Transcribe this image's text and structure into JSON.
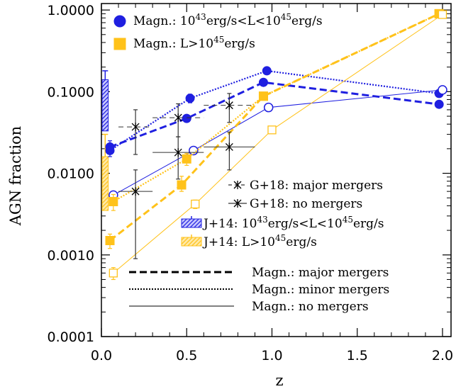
{
  "chart_data": {
    "type": "line",
    "xlabel": "z",
    "ylabel": "AGN fraction",
    "xlim": [
      0.0,
      2.05
    ],
    "ylim": [
      0.0001,
      1.2
    ],
    "yscale": "log",
    "grid": false,
    "legend_placement": "top-left / center-right / bottom-right",
    "x_ticks": [
      {
        "value": 0.0,
        "label": "0.0"
      },
      {
        "value": 0.5,
        "label": "0.5"
      },
      {
        "value": 1.0,
        "label": "1.0"
      },
      {
        "value": 1.5,
        "label": "1.5"
      },
      {
        "value": 2.0,
        "label": "2.0"
      }
    ],
    "y_ticks": [
      {
        "value": 0.0001,
        "label": "0.0001"
      },
      {
        "value": 0.001,
        "label": "0.0010"
      },
      {
        "value": 0.01,
        "label": "0.0100"
      },
      {
        "value": 0.1,
        "label": "0.1000"
      },
      {
        "value": 1.0,
        "label": "1.0000"
      }
    ],
    "colors": {
      "blue": "#1f1fe0",
      "yellow": "#ffc21a",
      "black": "#000000",
      "gray": "#555555"
    },
    "legend_top": [
      {
        "label_pre": "Magn.: 10",
        "sup1": "43",
        "label_mid": "erg/s<L<10",
        "sup2": "45",
        "label_post": "erg/s",
        "marker": "circle",
        "color": "#1f1fe0"
      },
      {
        "label_pre": "Magn.: L>10",
        "sup1": "45",
        "label_mid": "erg/s",
        "sup2": "",
        "label_post": "",
        "marker": "square",
        "color": "#ffc21a"
      }
    ],
    "legend_mid": [
      {
        "label_pre": "G+18: major mergers",
        "sup1": "",
        "label_mid": "",
        "sup2": "",
        "label_post": "",
        "style": "dashed-star"
      },
      {
        "label_pre": "G+18: no mergers",
        "sup1": "",
        "label_mid": "",
        "sup2": "",
        "label_post": "",
        "style": "solid-star"
      },
      {
        "label_pre": "J+14: 10",
        "sup1": "43",
        "label_mid": "erg/s<L<10",
        "sup2": "45",
        "label_post": "erg/s",
        "style": "hatch",
        "color": "#1f1fe0"
      },
      {
        "label_pre": "J+14: L>10",
        "sup1": "45",
        "label_mid": "erg/s",
        "sup2": "",
        "label_post": "",
        "style": "hatch",
        "color": "#ffc21a"
      }
    ],
    "legend_bottom": [
      {
        "label": "Magn.: major mergers",
        "dash": "10,5",
        "width": 3
      },
      {
        "label": "Magn.: minor mergers",
        "dash": "2,2",
        "width": 2
      },
      {
        "label": "Magn.: no mergers",
        "dash": "",
        "width": 1
      }
    ],
    "series": [
      {
        "style": "major",
        "color": "#1f1fe0",
        "marker": "circle-filled",
        "points": [
          {
            "x": 0.05,
            "y": 0.021,
            "lo": 0.018,
            "hi": 0.025
          },
          {
            "x": 0.5,
            "y": 0.047,
            "lo": 0.043,
            "hi": 0.051
          },
          {
            "x": 0.95,
            "y": 0.13
          },
          {
            "x": 1.98,
            "y": 0.07
          }
        ]
      },
      {
        "style": "minor",
        "color": "#1f1fe0",
        "marker": "circle-filled",
        "points": [
          {
            "x": 0.05,
            "y": 0.019,
            "lo": 0.016,
            "hi": 0.022
          },
          {
            "x": 0.52,
            "y": 0.083,
            "lo": 0.073,
            "hi": 0.093
          },
          {
            "x": 0.97,
            "y": 0.18
          },
          {
            "x": 1.98,
            "y": 0.095
          }
        ]
      },
      {
        "style": "none",
        "color": "#1f1fe0",
        "marker": "circle-open",
        "points": [
          {
            "x": 0.07,
            "y": 0.0054
          },
          {
            "x": 0.54,
            "y": 0.019
          },
          {
            "x": 0.98,
            "y": 0.064
          },
          {
            "x": 2.0,
            "y": 0.105
          }
        ]
      },
      {
        "style": "major",
        "color": "#ffc21a",
        "marker": "square-filled",
        "points": [
          {
            "x": 0.05,
            "y": 0.0015,
            "lo": 0.0012,
            "hi": 0.0018
          },
          {
            "x": 0.47,
            "y": 0.0072,
            "lo": 0.006,
            "hi": 0.0092
          },
          {
            "x": 0.95,
            "y": 0.088,
            "lo": 0.081,
            "hi": 0.095
          },
          {
            "x": 1.98,
            "y": 0.9
          }
        ]
      },
      {
        "style": "minor",
        "color": "#ffc21a",
        "marker": "square-filled",
        "points": [
          {
            "x": 0.07,
            "y": 0.0045,
            "lo": 0.0035,
            "hi": 0.0055
          },
          {
            "x": 0.5,
            "y": 0.015,
            "lo": 0.0125,
            "hi": 0.0175
          },
          {
            "x": 0.95,
            "y": 0.088
          },
          {
            "x": 1.98,
            "y": 0.9
          }
        ]
      },
      {
        "style": "none",
        "color": "#ffc21a",
        "marker": "square-open",
        "points": [
          {
            "x": 0.07,
            "y": 0.0006,
            "lo": 0.0005,
            "hi": 0.0007
          },
          {
            "x": 0.55,
            "y": 0.0042,
            "lo": 0.0037,
            "hi": 0.0047
          },
          {
            "x": 1.0,
            "y": 0.034,
            "lo": 0.031,
            "hi": 0.037
          },
          {
            "x": 2.0,
            "y": 0.88
          }
        ]
      },
      {
        "style": "g18major",
        "color": "#000000",
        "marker": "star",
        "points": [
          {
            "x": 0.2,
            "y": 0.037,
            "lo": 0.017,
            "hi": 0.06,
            "xlo": 0.1,
            "xhi": 0.3
          },
          {
            "x": 0.45,
            "y": 0.048,
            "lo": 0.028,
            "hi": 0.071,
            "xlo": 0.3,
            "xhi": 0.6
          },
          {
            "x": 0.75,
            "y": 0.068,
            "lo": 0.042,
            "hi": 0.095,
            "xlo": 0.6,
            "xhi": 0.9
          }
        ]
      },
      {
        "style": "g18none",
        "color": "#000000",
        "marker": "star",
        "points": [
          {
            "x": 0.2,
            "y": 0.006,
            "lo": 0.0009,
            "hi": 0.011,
            "xlo": 0.1,
            "xhi": 0.3
          },
          {
            "x": 0.45,
            "y": 0.018,
            "lo": 0.0085,
            "hi": 0.028,
            "xlo": 0.3,
            "xhi": 0.6
          },
          {
            "x": 0.75,
            "y": 0.021,
            "lo": 0.011,
            "hi": 0.032,
            "xlo": 0.6,
            "xhi": 0.9
          }
        ]
      }
    ],
    "j14_bars": [
      {
        "color": "#1f1fe0",
        "x0": 0.0,
        "x1": 0.04,
        "ylo": 0.033,
        "yhi": 0.14,
        "err_hi": 0.18
      },
      {
        "color": "#ffc21a",
        "x0": 0.0,
        "x1": 0.04,
        "ylo": 0.0035,
        "yhi": 0.016,
        "err_hi": 0.03
      }
    ]
  }
}
